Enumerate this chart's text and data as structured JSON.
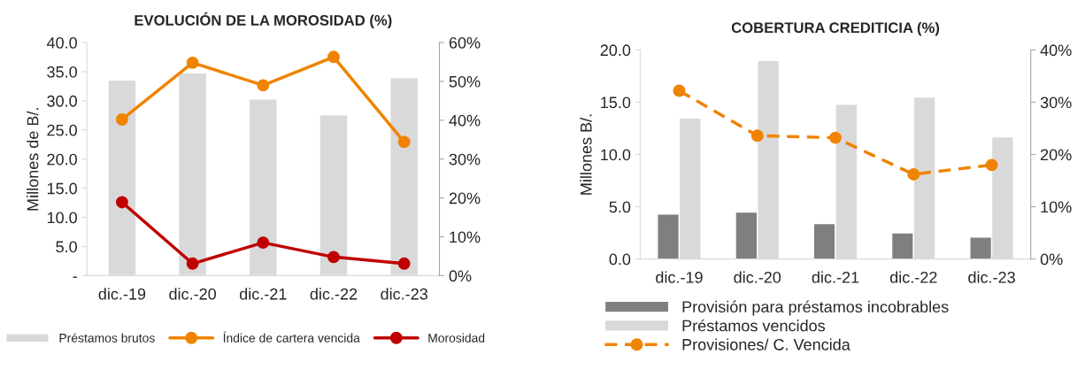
{
  "chart_data": [
    {
      "type": "bar",
      "title": "EVOLUCIÓN DE LA MOROSIDAD (%)",
      "ylabel": "Millones de B/.",
      "categories": [
        "dic.-19",
        "dic.-20",
        "dic.-21",
        "dic.-22",
        "dic.-23"
      ],
      "series": [
        {
          "name": "Préstamos brutos",
          "color": "#d9d9d9",
          "values": [
            33.6,
            34.8,
            30.3,
            27.6,
            34.0
          ]
        },
        {
          "name": "Índice de cartera vencida",
          "type": "line",
          "axis": "y2",
          "color": "#f08300",
          "marker": "circle",
          "line_style": "solid",
          "values": [
            40.2,
            54.8,
            49.0,
            56.3,
            34.4
          ]
        },
        {
          "name": "Morosidad",
          "type": "line",
          "axis": "y2",
          "color": "#c00000",
          "marker": "circle",
          "line_style": "solid",
          "values": [
            18.9,
            3.1,
            8.5,
            4.8,
            3.1
          ]
        }
      ],
      "ylim": [
        0,
        40
      ],
      "yticks": [
        {
          "value": 0,
          "label": "-"
        },
        {
          "value": 5,
          "label": "5.0"
        },
        {
          "value": 10,
          "label": "10.0"
        },
        {
          "value": 15,
          "label": "15.0"
        },
        {
          "value": 20,
          "label": "20.0"
        },
        {
          "value": 25,
          "label": "25.0"
        },
        {
          "value": 30,
          "label": "30.0"
        },
        {
          "value": 35,
          "label": "35.0"
        },
        {
          "value": 40,
          "label": "40.0"
        }
      ],
      "y2lim": [
        0,
        60
      ],
      "y2ticks": [
        {
          "value": 0,
          "label": "0%"
        },
        {
          "value": 10,
          "label": "10%"
        },
        {
          "value": 20,
          "label": "20%"
        },
        {
          "value": 30,
          "label": "30%"
        },
        {
          "value": 40,
          "label": "40%"
        },
        {
          "value": 50,
          "label": "50%"
        },
        {
          "value": 60,
          "label": "60%"
        }
      ],
      "grid": false,
      "legend": "bottom"
    },
    {
      "type": "bar",
      "title": "COBERTURA CREDITICIA (%)",
      "ylabel": "Millones B/.",
      "categories": [
        "dic.-19",
        "dic.-20",
        "dic.-21",
        "dic.-22",
        "dic.-23"
      ],
      "series": [
        {
          "name": "Provisión para préstamos incobrables",
          "color": "#7f7f7f",
          "values": [
            4.3,
            4.5,
            3.4,
            2.5,
            2.1
          ]
        },
        {
          "name": "Préstamos vencidos",
          "color": "#d9d9d9",
          "values": [
            13.5,
            19.0,
            14.8,
            15.5,
            11.7
          ]
        },
        {
          "name": "Provisiones/ C. Vencida",
          "type": "line",
          "axis": "y2",
          "color": "#f08300",
          "marker": "circle",
          "line_style": "dashed",
          "values": [
            32.2,
            23.6,
            23.2,
            16.2,
            18.0
          ]
        }
      ],
      "ylim": [
        0,
        20
      ],
      "yticks": [
        {
          "value": 0,
          "label": "0.0"
        },
        {
          "value": 5,
          "label": "5.0"
        },
        {
          "value": 10,
          "label": "10.0"
        },
        {
          "value": 15,
          "label": "15.0"
        },
        {
          "value": 20,
          "label": "20.0"
        }
      ],
      "y2lim": [
        0,
        40
      ],
      "y2ticks": [
        {
          "value": 0,
          "label": "0%"
        },
        {
          "value": 10,
          "label": "10%"
        },
        {
          "value": 20,
          "label": "20%"
        },
        {
          "value": 30,
          "label": "30%"
        },
        {
          "value": 40,
          "label": "40%"
        }
      ],
      "grid": false,
      "legend": "bottom"
    }
  ]
}
